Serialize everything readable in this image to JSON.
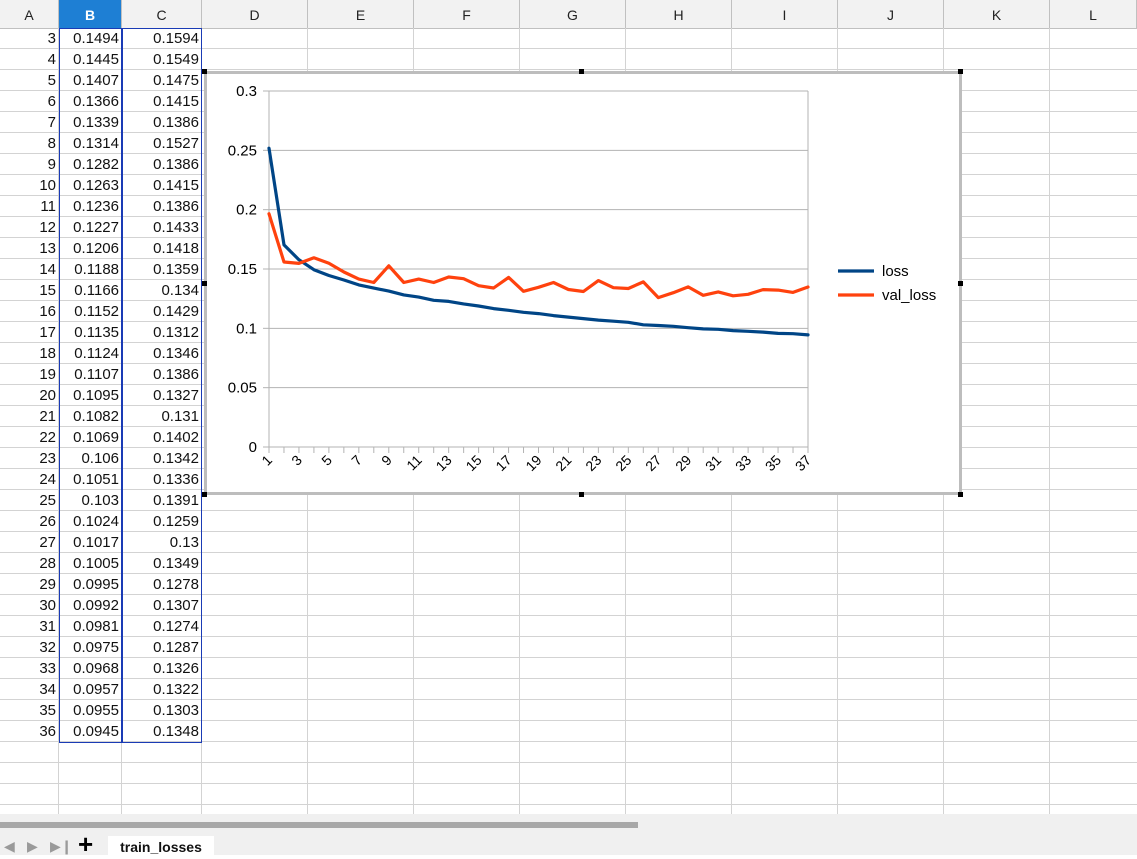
{
  "columns": [
    "A",
    "B",
    "C",
    "D",
    "E",
    "F",
    "G",
    "H",
    "I",
    "J",
    "K",
    "L"
  ],
  "selected_column": "B",
  "rows": [
    {
      "row": "3",
      "b": "0.1494",
      "c": "0.1594"
    },
    {
      "row": "4",
      "b": "0.1445",
      "c": "0.1549"
    },
    {
      "row": "5",
      "b": "0.1407",
      "c": "0.1475"
    },
    {
      "row": "6",
      "b": "0.1366",
      "c": "0.1415"
    },
    {
      "row": "7",
      "b": "0.1339",
      "c": "0.1386"
    },
    {
      "row": "8",
      "b": "0.1314",
      "c": "0.1527"
    },
    {
      "row": "9",
      "b": "0.1282",
      "c": "0.1386"
    },
    {
      "row": "10",
      "b": "0.1263",
      "c": "0.1415"
    },
    {
      "row": "11",
      "b": "0.1236",
      "c": "0.1386"
    },
    {
      "row": "12",
      "b": "0.1227",
      "c": "0.1433"
    },
    {
      "row": "13",
      "b": "0.1206",
      "c": "0.1418"
    },
    {
      "row": "14",
      "b": "0.1188",
      "c": "0.1359"
    },
    {
      "row": "15",
      "b": "0.1166",
      "c": "0.134"
    },
    {
      "row": "16",
      "b": "0.1152",
      "c": "0.1429"
    },
    {
      "row": "17",
      "b": "0.1135",
      "c": "0.1312"
    },
    {
      "row": "18",
      "b": "0.1124",
      "c": "0.1346"
    },
    {
      "row": "19",
      "b": "0.1107",
      "c": "0.1386"
    },
    {
      "row": "20",
      "b": "0.1095",
      "c": "0.1327"
    },
    {
      "row": "21",
      "b": "0.1082",
      "c": "0.131"
    },
    {
      "row": "22",
      "b": "0.1069",
      "c": "0.1402"
    },
    {
      "row": "23",
      "b": "0.106",
      "c": "0.1342"
    },
    {
      "row": "24",
      "b": "0.1051",
      "c": "0.1336"
    },
    {
      "row": "25",
      "b": "0.103",
      "c": "0.1391"
    },
    {
      "row": "26",
      "b": "0.1024",
      "c": "0.1259"
    },
    {
      "row": "27",
      "b": "0.1017",
      "c": "0.13"
    },
    {
      "row": "28",
      "b": "0.1005",
      "c": "0.1349"
    },
    {
      "row": "29",
      "b": "0.0995",
      "c": "0.1278"
    },
    {
      "row": "30",
      "b": "0.0992",
      "c": "0.1307"
    },
    {
      "row": "31",
      "b": "0.0981",
      "c": "0.1274"
    },
    {
      "row": "32",
      "b": "0.0975",
      "c": "0.1287"
    },
    {
      "row": "33",
      "b": "0.0968",
      "c": "0.1326"
    },
    {
      "row": "34",
      "b": "0.0957",
      "c": "0.1322"
    },
    {
      "row": "35",
      "b": "0.0955",
      "c": "0.1303"
    },
    {
      "row": "36",
      "b": "0.0945",
      "c": "0.1348"
    }
  ],
  "sheet_tab": "train_losses",
  "icons": {
    "nav_first": "first-sheet-arrow-icon",
    "nav_prev": "prev-sheet-arrow-icon",
    "nav_next": "next-sheet-arrow-icon",
    "nav_last": "last-sheet-arrow-icon",
    "add_sheet": "plus-icon"
  },
  "chart_data": {
    "type": "line",
    "x": [
      1,
      2,
      3,
      4,
      5,
      6,
      7,
      8,
      9,
      10,
      11,
      12,
      13,
      14,
      15,
      16,
      17,
      18,
      19,
      20,
      21,
      22,
      23,
      24,
      25,
      26,
      27,
      28,
      29,
      30,
      31,
      32,
      33,
      34,
      35,
      36,
      37
    ],
    "x_tick_labels": [
      "1",
      "3",
      "5",
      "7",
      "9",
      "11",
      "13",
      "15",
      "17",
      "19",
      "21",
      "23",
      "25",
      "27",
      "29",
      "31",
      "33",
      "35",
      "37"
    ],
    "y_tick_labels": [
      "0",
      "0.05",
      "0.1",
      "0.15",
      "0.2",
      "0.25",
      "0.3"
    ],
    "ylim": [
      0,
      0.3
    ],
    "grid": true,
    "legend_position": "right",
    "series": [
      {
        "name": "loss",
        "color": "#004586",
        "values": [
          0.2518,
          0.1703,
          0.1578,
          0.1494,
          0.1445,
          0.1407,
          0.1366,
          0.1339,
          0.1314,
          0.1282,
          0.1263,
          0.1236,
          0.1227,
          0.1206,
          0.1188,
          0.1166,
          0.1152,
          0.1135,
          0.1124,
          0.1107,
          0.1095,
          0.1082,
          0.1069,
          0.106,
          0.1051,
          0.103,
          0.1024,
          0.1017,
          0.1005,
          0.0995,
          0.0992,
          0.0981,
          0.0975,
          0.0968,
          0.0957,
          0.0955,
          0.0945
        ]
      },
      {
        "name": "val_loss",
        "color": "#ff420e",
        "values": [
          0.1965,
          0.1559,
          0.1547,
          0.1594,
          0.1549,
          0.1475,
          0.1415,
          0.1386,
          0.1527,
          0.1386,
          0.1415,
          0.1386,
          0.1433,
          0.1418,
          0.1359,
          0.134,
          0.1429,
          0.1312,
          0.1346,
          0.1386,
          0.1327,
          0.131,
          0.1402,
          0.1342,
          0.1336,
          0.1391,
          0.1259,
          0.13,
          0.1349,
          0.1278,
          0.1307,
          0.1274,
          0.1287,
          0.1326,
          0.1322,
          0.1303,
          0.1348
        ]
      }
    ]
  }
}
